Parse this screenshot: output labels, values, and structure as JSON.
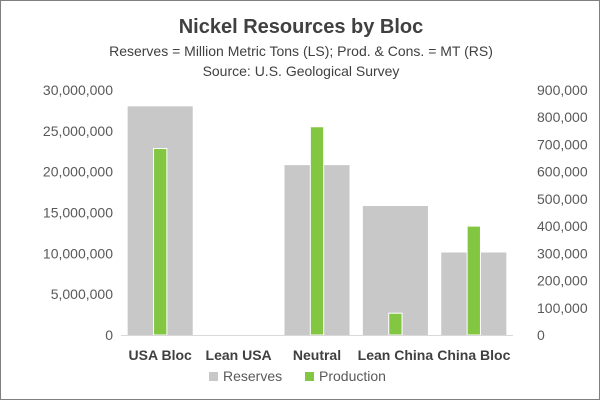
{
  "chart_data": {
    "type": "bar",
    "title": "Nickel Resources by Bloc",
    "subtitle": "Reserves = Million Metric Tons (LS); Prod. & Cons. = MT (RS)",
    "source": "Source:  U.S. Geological Survey",
    "categories": [
      "USA Bloc",
      "Lean USA",
      "Neutral",
      "Lean China",
      "China Bloc"
    ],
    "series": [
      {
        "name": "Reserves",
        "axis": "left",
        "color": "#c8c8c8",
        "values": [
          28000000,
          0,
          20800000,
          15800000,
          10100000
        ]
      },
      {
        "name": "Production",
        "axis": "right",
        "color": "#82c641",
        "values": [
          685000,
          0,
          765000,
          80000,
          400000
        ]
      }
    ],
    "y_left": {
      "min": 0,
      "max": 30000000,
      "step": 5000000,
      "tick_labels": [
        "0",
        "5,000,000",
        "10,000,000",
        "15,000,000",
        "20,000,000",
        "25,000,000",
        "30,000,000"
      ]
    },
    "y_right": {
      "min": 0,
      "max": 900000,
      "step": 100000,
      "tick_labels": [
        "0",
        "100,000",
        "200,000",
        "300,000",
        "400,000",
        "500,000",
        "600,000",
        "700,000",
        "800,000",
        "900,000"
      ]
    },
    "grid": false,
    "legend_position": "bottom"
  }
}
